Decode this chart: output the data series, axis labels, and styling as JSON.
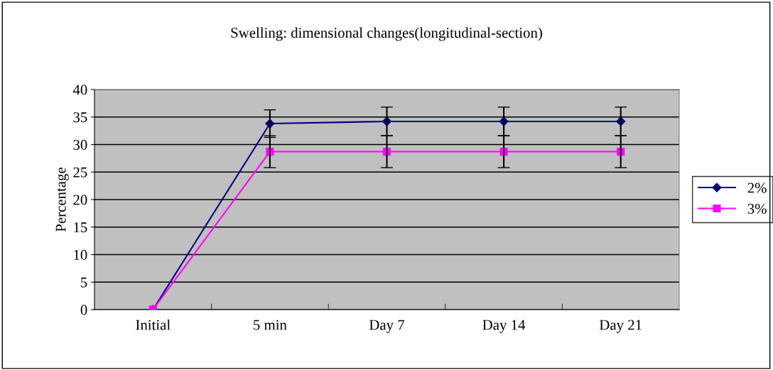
{
  "chart_data": {
    "type": "line",
    "title": "Swelling: dimensional changes(longitudinal-section)",
    "ylabel": "Percentage",
    "categories": [
      "Initial",
      "5 min",
      "Day 7",
      "Day 14",
      "Day 21"
    ],
    "series": [
      {
        "name": "2%",
        "color": "#000080",
        "marker": "diamond",
        "values": [
          0,
          33.8,
          34.2,
          34.2,
          34.2
        ],
        "errors": [
          null,
          2.5,
          2.6,
          2.6,
          2.6
        ]
      },
      {
        "name": "3%",
        "color": "#ff00ff",
        "marker": "square",
        "values": [
          0,
          28.7,
          28.7,
          28.7,
          28.7
        ],
        "errors": [
          null,
          2.9,
          2.9,
          2.9,
          2.9
        ]
      }
    ],
    "ylim": [
      0,
      40
    ],
    "yticks": [
      0,
      5,
      10,
      15,
      20,
      25,
      30,
      35,
      40
    ],
    "grid": "y",
    "legend": "right"
  }
}
